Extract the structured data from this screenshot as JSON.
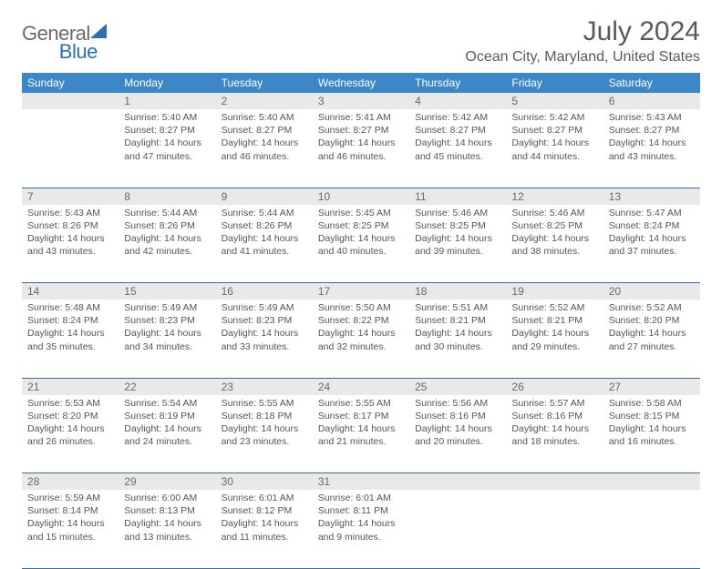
{
  "logo": {
    "part1": "General",
    "part2": "Blue"
  },
  "title": "July 2024",
  "location": "Ocean City, Maryland, United States",
  "dayHeaders": [
    "Sunday",
    "Monday",
    "Tuesday",
    "Wednesday",
    "Thursday",
    "Friday",
    "Saturday"
  ],
  "colors": {
    "headerBg": "#3b87c8",
    "headerText": "#ffffff",
    "dayNumBg": "#e9e9e9",
    "rowDivider": "#3b6fa0",
    "logoAccent": "#2a6fb5",
    "bodyText": "#555555"
  },
  "weeks": [
    [
      {
        "n": "",
        "sr": "",
        "ss": "",
        "dl": ""
      },
      {
        "n": "1",
        "sr": "5:40 AM",
        "ss": "8:27 PM",
        "dl": "14 hours and 47 minutes."
      },
      {
        "n": "2",
        "sr": "5:40 AM",
        "ss": "8:27 PM",
        "dl": "14 hours and 46 minutes."
      },
      {
        "n": "3",
        "sr": "5:41 AM",
        "ss": "8:27 PM",
        "dl": "14 hours and 46 minutes."
      },
      {
        "n": "4",
        "sr": "5:42 AM",
        "ss": "8:27 PM",
        "dl": "14 hours and 45 minutes."
      },
      {
        "n": "5",
        "sr": "5:42 AM",
        "ss": "8:27 PM",
        "dl": "14 hours and 44 minutes."
      },
      {
        "n": "6",
        "sr": "5:43 AM",
        "ss": "8:27 PM",
        "dl": "14 hours and 43 minutes."
      }
    ],
    [
      {
        "n": "7",
        "sr": "5:43 AM",
        "ss": "8:26 PM",
        "dl": "14 hours and 43 minutes."
      },
      {
        "n": "8",
        "sr": "5:44 AM",
        "ss": "8:26 PM",
        "dl": "14 hours and 42 minutes."
      },
      {
        "n": "9",
        "sr": "5:44 AM",
        "ss": "8:26 PM",
        "dl": "14 hours and 41 minutes."
      },
      {
        "n": "10",
        "sr": "5:45 AM",
        "ss": "8:25 PM",
        "dl": "14 hours and 40 minutes."
      },
      {
        "n": "11",
        "sr": "5:46 AM",
        "ss": "8:25 PM",
        "dl": "14 hours and 39 minutes."
      },
      {
        "n": "12",
        "sr": "5:46 AM",
        "ss": "8:25 PM",
        "dl": "14 hours and 38 minutes."
      },
      {
        "n": "13",
        "sr": "5:47 AM",
        "ss": "8:24 PM",
        "dl": "14 hours and 37 minutes."
      }
    ],
    [
      {
        "n": "14",
        "sr": "5:48 AM",
        "ss": "8:24 PM",
        "dl": "14 hours and 35 minutes."
      },
      {
        "n": "15",
        "sr": "5:49 AM",
        "ss": "8:23 PM",
        "dl": "14 hours and 34 minutes."
      },
      {
        "n": "16",
        "sr": "5:49 AM",
        "ss": "8:23 PM",
        "dl": "14 hours and 33 minutes."
      },
      {
        "n": "17",
        "sr": "5:50 AM",
        "ss": "8:22 PM",
        "dl": "14 hours and 32 minutes."
      },
      {
        "n": "18",
        "sr": "5:51 AM",
        "ss": "8:21 PM",
        "dl": "14 hours and 30 minutes."
      },
      {
        "n": "19",
        "sr": "5:52 AM",
        "ss": "8:21 PM",
        "dl": "14 hours and 29 minutes."
      },
      {
        "n": "20",
        "sr": "5:52 AM",
        "ss": "8:20 PM",
        "dl": "14 hours and 27 minutes."
      }
    ],
    [
      {
        "n": "21",
        "sr": "5:53 AM",
        "ss": "8:20 PM",
        "dl": "14 hours and 26 minutes."
      },
      {
        "n": "22",
        "sr": "5:54 AM",
        "ss": "8:19 PM",
        "dl": "14 hours and 24 minutes."
      },
      {
        "n": "23",
        "sr": "5:55 AM",
        "ss": "8:18 PM",
        "dl": "14 hours and 23 minutes."
      },
      {
        "n": "24",
        "sr": "5:55 AM",
        "ss": "8:17 PM",
        "dl": "14 hours and 21 minutes."
      },
      {
        "n": "25",
        "sr": "5:56 AM",
        "ss": "8:16 PM",
        "dl": "14 hours and 20 minutes."
      },
      {
        "n": "26",
        "sr": "5:57 AM",
        "ss": "8:16 PM",
        "dl": "14 hours and 18 minutes."
      },
      {
        "n": "27",
        "sr": "5:58 AM",
        "ss": "8:15 PM",
        "dl": "14 hours and 16 minutes."
      }
    ],
    [
      {
        "n": "28",
        "sr": "5:59 AM",
        "ss": "8:14 PM",
        "dl": "14 hours and 15 minutes."
      },
      {
        "n": "29",
        "sr": "6:00 AM",
        "ss": "8:13 PM",
        "dl": "14 hours and 13 minutes."
      },
      {
        "n": "30",
        "sr": "6:01 AM",
        "ss": "8:12 PM",
        "dl": "14 hours and 11 minutes."
      },
      {
        "n": "31",
        "sr": "6:01 AM",
        "ss": "8:11 PM",
        "dl": "14 hours and 9 minutes."
      },
      {
        "n": "",
        "sr": "",
        "ss": "",
        "dl": ""
      },
      {
        "n": "",
        "sr": "",
        "ss": "",
        "dl": ""
      },
      {
        "n": "",
        "sr": "",
        "ss": "",
        "dl": ""
      }
    ]
  ],
  "labels": {
    "sunrise": "Sunrise: ",
    "sunset": "Sunset: ",
    "daylight": "Daylight: "
  }
}
